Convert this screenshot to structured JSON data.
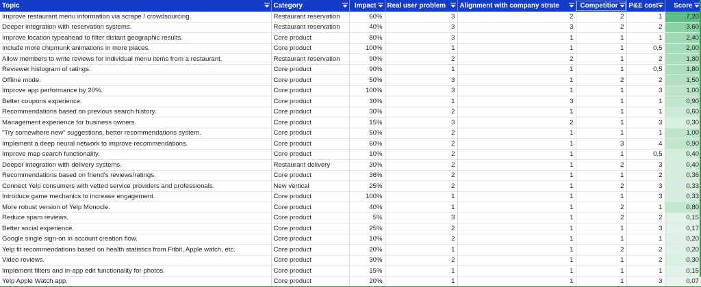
{
  "columns": [
    "Topic",
    "Category",
    "Impact",
    "Real user problem",
    "Alignment with company strate",
    "Competitior",
    "P&E cost",
    "Score"
  ],
  "rows": [
    [
      "Improve restaurant menu information via scrape / crowdsourcing.",
      "Restaurant reservation",
      "60%",
      "3",
      "2",
      "2",
      "1",
      "7,20"
    ],
    [
      "Deeper integration with reservation systems.",
      "Restaurant reservation",
      "40%",
      "3",
      "3",
      "2",
      "2",
      "3,60"
    ],
    [
      "Improve location typeahead to filter distant geographic results.",
      "Core product",
      "80%",
      "3",
      "1",
      "1",
      "1",
      "2,40"
    ],
    [
      "Include more chipmunk animations in more places.",
      "Core product",
      "100%",
      "1",
      "1",
      "1",
      "0,5",
      "2,00"
    ],
    [
      "Allow members to write reviews for individual menu items from a restaurant.",
      "Restaurant reservation",
      "90%",
      "2",
      "2",
      "1",
      "2",
      "1,80"
    ],
    [
      "Reviewer histogram of ratings.",
      "Core product",
      "90%",
      "1",
      "1",
      "1",
      "0,5",
      "1,80"
    ],
    [
      "Offline mode.",
      "Core product",
      "50%",
      "3",
      "1",
      "2",
      "2",
      "1,50"
    ],
    [
      "Improve app performance by 20%.",
      "Core product",
      "100%",
      "3",
      "1",
      "1",
      "3",
      "1,00"
    ],
    [
      "Better coupons experience.",
      "Core product",
      "30%",
      "1",
      "3",
      "1",
      "1",
      "0,90"
    ],
    [
      "Recommendations based on previous search history.",
      "Core product",
      "30%",
      "2",
      "1",
      "1",
      "1",
      "0,60"
    ],
    [
      "Management experience for business owners.",
      "Core product",
      "15%",
      "3",
      "2",
      "1",
      "3",
      "0,30"
    ],
    [
      "“Try somewhere new” suggestions, better recommendations system.",
      "Core product",
      "50%",
      "2",
      "1",
      "1",
      "1",
      "1,00"
    ],
    [
      "Implement a deep neural network to improve recommendations.",
      "Core product",
      "60%",
      "2",
      "1",
      "3",
      "4",
      "0,90"
    ],
    [
      "Improve map search functionality.",
      "Core product",
      "10%",
      "2",
      "1",
      "1",
      "0,5",
      "0,40"
    ],
    [
      "Deeper integration with delivery systems.",
      "Restaurant delivery",
      "30%",
      "2",
      "1",
      "2",
      "3",
      "0,40"
    ],
    [
      "Recommendations based on friend's reviews/ratings.",
      "Core product",
      "36%",
      "2",
      "1",
      "1",
      "2",
      "0,36"
    ],
    [
      "Connect Yelp consumers with vetted service providers and professionals.",
      "New vertical",
      "25%",
      "2",
      "1",
      "2",
      "3",
      "0,33"
    ],
    [
      "Introduce game mechanics to increase engagement.",
      "Core product",
      "100%",
      "1",
      "1",
      "1",
      "3",
      "0,33"
    ],
    [
      "More robust version of Yelp Monocle.",
      "Core product",
      "40%",
      "1",
      "1",
      "2",
      "1",
      "0,80"
    ],
    [
      "Reduce spam reviews.",
      "Core product",
      "5%",
      "3",
      "1",
      "2",
      "2",
      "0,15"
    ],
    [
      "Better social experience.",
      "Core product",
      "25%",
      "2",
      "1",
      "1",
      "3",
      "0,17"
    ],
    [
      "Google single sign-on in account creation flow.",
      "Core product",
      "10%",
      "2",
      "1",
      "1",
      "1",
      "0,20"
    ],
    [
      "Yelp fit  recommendations based on health statistics from Fitbit, Apple watch, etc.",
      "Core product",
      "20%",
      "1",
      "1",
      "2",
      "2",
      "0,20"
    ],
    [
      "Video reviews.",
      "Core product",
      "30%",
      "2",
      "1",
      "1",
      "2",
      "0,30"
    ],
    [
      "Implement filters and in-app edit functionality for photos.",
      "Core product",
      "15%",
      "1",
      "1",
      "1",
      "1",
      "0,15"
    ],
    [
      "Yelp Apple Watch app.",
      "Core product",
      "20%",
      "1",
      "1",
      "1",
      "3",
      "0,07"
    ]
  ],
  "colors": {
    "header_bg": "#143cc6",
    "score_scale_low": "#f7fcf8",
    "score_scale_high": "#5cbf80",
    "accent_green": "#2f9a47"
  },
  "filter_icon": "filter-dropdown-icon"
}
